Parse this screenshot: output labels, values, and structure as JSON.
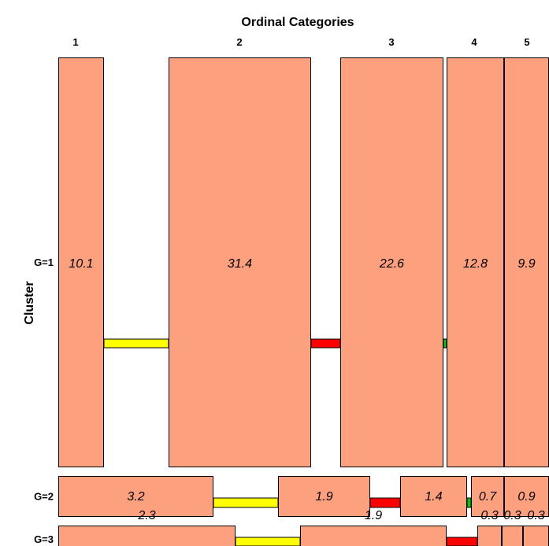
{
  "chart_data": {
    "type": "mosaic",
    "title": "Ordinal Categories",
    "ylabel": "Cluster",
    "columns": [
      "1",
      "2",
      "3",
      "4",
      "5"
    ],
    "rows": [
      "G=1",
      "G=2",
      "G=3"
    ],
    "cells": [
      [
        10.1,
        31.4,
        22.6,
        12.8,
        9.9
      ],
      [
        3.2,
        1.9,
        1.4,
        0.7,
        0.9
      ],
      [
        2.3,
        1.9,
        0.3,
        0.3,
        0.3
      ]
    ],
    "cell_labels": [
      [
        "10.1",
        "31.4",
        "22.6",
        "12.8",
        "9.9"
      ],
      [
        "3.2",
        "1.9",
        "1.4",
        "0.7",
        "0.9"
      ],
      [
        "2.3",
        "1.9",
        "0.3",
        "0.3",
        "0.3"
      ]
    ],
    "colors": {
      "cell_fill": "#fca07e",
      "cell_stroke": "#000000",
      "zero_cell": [
        "#ffff00",
        "#ff0000",
        "#00cc00"
      ],
      "background": "#ffffff"
    }
  }
}
